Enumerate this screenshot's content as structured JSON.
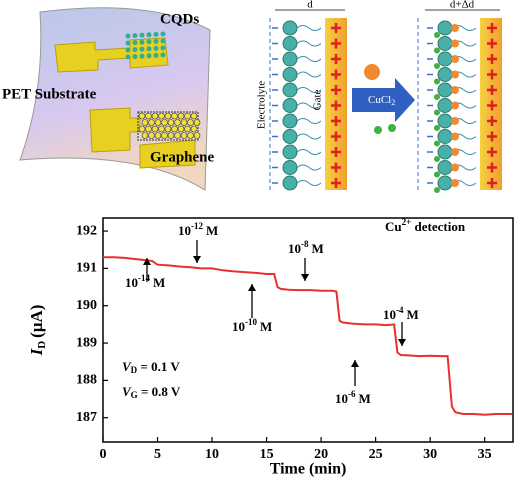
{
  "schematic": {
    "cqds": "CQDs",
    "substrate": "PET Substrate",
    "graphene": "Graphene",
    "d": "d",
    "d_delta": "d+Δd",
    "electrolyte": "Electrolyte",
    "gate": "Gate",
    "salt": "CuCl",
    "salt_sub": "2"
  },
  "chart_data": {
    "type": "line",
    "x_label": "Time (min)",
    "y_label": {
      "main": "I",
      "sub": "D",
      "unit": "(μA)"
    },
    "annotations": [
      {
        "base": "10",
        "sup": "-14",
        "unit": "M"
      },
      {
        "base": "10",
        "sup": "-12",
        "unit": "M"
      },
      {
        "base": "10",
        "sup": "-10",
        "unit": "M"
      },
      {
        "base": "10",
        "sup": "-8",
        "unit": "M"
      },
      {
        "base": "10",
        "sup": "-6",
        "unit": "M"
      },
      {
        "base": "10",
        "sup": "-4",
        "unit": "M"
      }
    ],
    "legend_note": {
      "main": "Cu",
      "sup": "2+",
      "rest": " detection"
    },
    "conditions": [
      {
        "main": "V",
        "sub": "D",
        "rest": " = 0.1 V"
      },
      {
        "main": "V",
        "sub": "G",
        "rest": " = 0.8 V"
      }
    ],
    "x": [
      0,
      1,
      2,
      3,
      4,
      4.5,
      5,
      6,
      7,
      8,
      9,
      10,
      11,
      12,
      13,
      14,
      15,
      15.7,
      16,
      16.3,
      17,
      18,
      19,
      20,
      21,
      21.4,
      21.7,
      22,
      23,
      24,
      25,
      26,
      26.7,
      27,
      27.3,
      28,
      29,
      30,
      31,
      31.6,
      32,
      32.3,
      33,
      34,
      35,
      36,
      37.5
    ],
    "series": [
      {
        "color": "#e8312f",
        "values": [
          191.3,
          191.3,
          191.28,
          191.25,
          191.22,
          191.2,
          191.1,
          191.08,
          191.05,
          191.03,
          191.0,
          191.0,
          190.95,
          190.92,
          190.9,
          190.88,
          190.85,
          190.85,
          190.5,
          190.45,
          190.43,
          190.42,
          190.42,
          190.4,
          190.4,
          190.38,
          189.6,
          189.55,
          189.52,
          189.5,
          189.5,
          189.48,
          189.5,
          188.75,
          188.68,
          188.67,
          188.65,
          188.66,
          188.65,
          188.65,
          187.3,
          187.15,
          187.1,
          187.1,
          187.08,
          187.1,
          187.1
        ]
      }
    ],
    "xlim": [
      0,
      37.6
    ],
    "xticks": [
      0,
      5,
      10,
      15,
      20,
      25,
      30,
      35
    ],
    "ylim": [
      186.35,
      192.35
    ],
    "yticks": [
      187,
      188,
      189,
      190,
      191,
      192
    ]
  }
}
